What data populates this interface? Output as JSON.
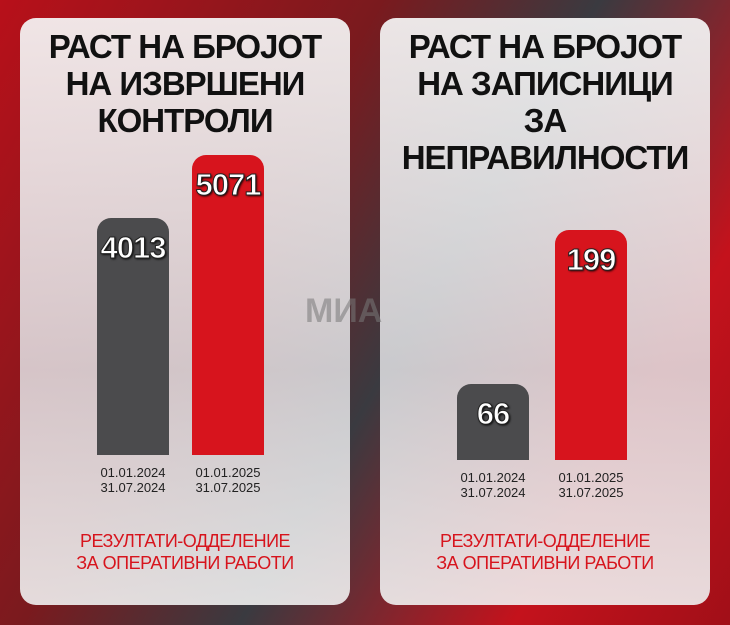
{
  "chart_data": [
    {
      "type": "bar",
      "title": "РАСТ НА БРОЈОТ\nНА ИЗВРШЕНИ\nКОНТРОЛИ",
      "categories": [
        "01.01.2024\n31.07.2024",
        "01.01.2025\n31.07.2025"
      ],
      "values": [
        4013,
        5071
      ],
      "colors": [
        "#4b4b4d",
        "#d7141d"
      ],
      "note": "РЕЗУЛТАТИ-ОДДЕЛЕНИЕ\nЗА ОПЕРАТИВНИ РАБОТИ"
    },
    {
      "type": "bar",
      "title": "РАСТ НА БРОЈОТ\nНА ЗАПИСНИЦИ\nЗА\nНЕПРАВИЛНОСТИ",
      "categories": [
        "01.01.2024\n31.07.2024",
        "01.01.2025\n31.07.2025"
      ],
      "values": [
        66,
        199
      ],
      "colors": [
        "#4b4b4d",
        "#d7141d"
      ],
      "note": "РЕЗУЛТАТИ-ОДДЕЛЕНИЕ\nЗА ОПЕРАТИВНИ РАБОТИ"
    }
  ],
  "watermark": "МИА"
}
